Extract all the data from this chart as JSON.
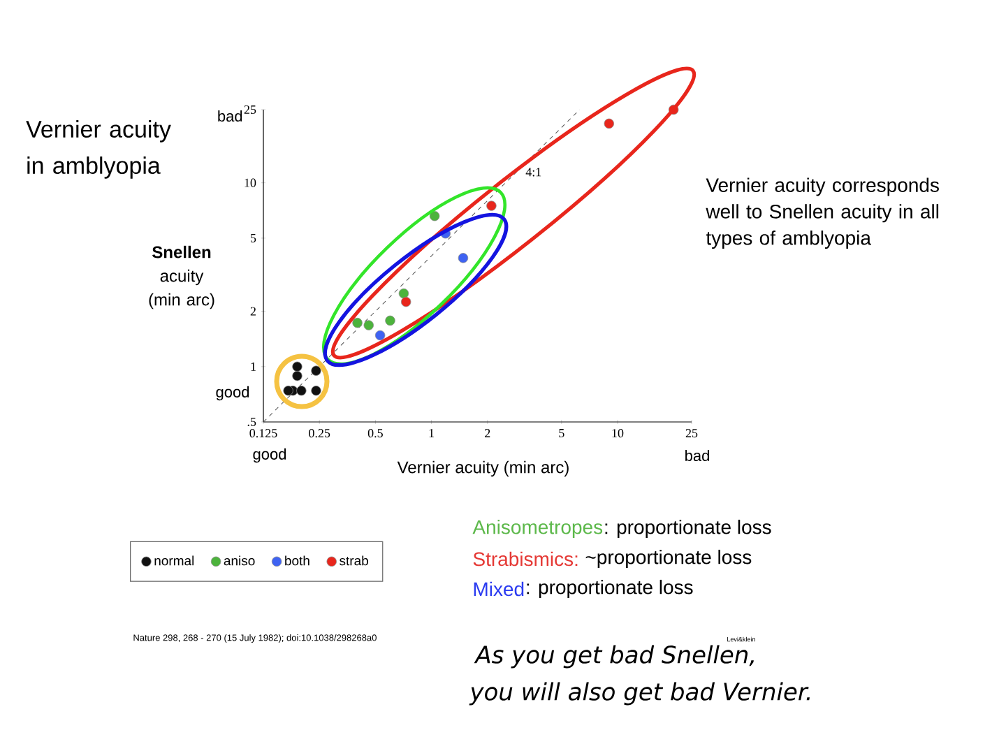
{
  "chart_data": {
    "type": "scatter",
    "title": "Vernier acuity in amblyopia",
    "xlabel": "Vernier acuity (min arc)",
    "ylabel": "**Snellen** acuity (min arc)",
    "log": "xy",
    "xlim": [
      0.125,
      25
    ],
    "ylim": [
      0.5,
      25
    ],
    "xticks": [
      0.125,
      0.25,
      0.5,
      1,
      2,
      5,
      10,
      25
    ],
    "yticks": [
      {
        "value": 0.5,
        "label": ".5"
      },
      1,
      2,
      5,
      10,
      25
    ],
    "marker": "circle",
    "legend": "bottom left",
    "series": [
      {
        "name": "normal",
        "color": "#111111",
        "x": [
          0.19,
          0.19,
          0.24,
          0.18,
          0.2,
          0.24,
          0.17
        ],
        "values": [
          1.0,
          0.89,
          0.95,
          0.74,
          0.74,
          0.74,
          0.74
        ]
      },
      {
        "name": "aniso",
        "color": "#4cb33c",
        "x": [
          1.04,
          0.71,
          0.6,
          0.46,
          0.4
        ],
        "values": [
          6.6,
          2.5,
          1.78,
          1.68,
          1.73
        ]
      },
      {
        "name": "both",
        "color": "#3f63f2",
        "x": [
          1.19,
          1.48,
          0.53
        ],
        "values": [
          5.3,
          3.9,
          1.48
        ]
      },
      {
        "name": "strab",
        "color": "#e8261c",
        "x": [
          20,
          9.0,
          2.1,
          0.73
        ],
        "values": [
          25,
          21,
          7.5,
          2.25
        ]
      },
      {
        "name": "4:1",
        "type": "line",
        "color": "#555555",
        "marker": "none",
        "line_style": "dashed",
        "x": [
          0.125,
          6.25
        ],
        "values": [
          0.5,
          25
        ]
      }
    ],
    "annotations": [
      "bad",
      "good",
      "good",
      "bad",
      "Vernier acuity corresponds well to Snellen acuity in all types of amblyopia",
      "Anisometropes",
      ": proportionate loss",
      "Strabismics:",
      " ~proportionate loss",
      "Mixed",
      ": proportionate loss",
      "Nature 298, 268 - 270 (15 July 1982); doi:10.1038/298268a0",
      "As you get bad Snellen,",
      "you will also get bad Vernier.",
      "Levi&klein"
    ]
  }
}
